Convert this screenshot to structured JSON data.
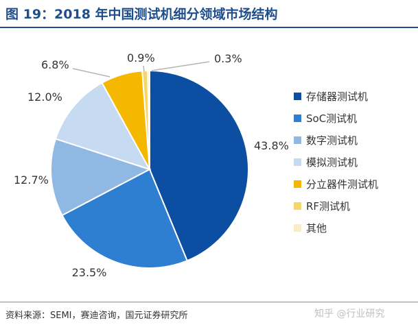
{
  "title": "图 19：2018 年中国测试机细分领域市场结构",
  "source": "资料来源：SEMI，赛迪咨询，国元证券研究所",
  "watermark": "知乎 @行业研究",
  "chart_data": {
    "type": "pie",
    "start_angle_deg": 0,
    "direction": "clockwise",
    "legend_position": "right",
    "slices": [
      {
        "name": "存储器测试机",
        "value": 43.8,
        "label": "43.8%",
        "color": "#0b4ea2"
      },
      {
        "name": "SoC测试机",
        "value": 23.5,
        "label": "23.5%",
        "color": "#2e7fd1"
      },
      {
        "name": "数字测试机",
        "value": 12.7,
        "label": "12.7%",
        "color": "#8fb8e3"
      },
      {
        "name": "模拟测试机",
        "value": 12.0,
        "label": "12.0%",
        "color": "#c6daf1"
      },
      {
        "name": "分立器件测试机",
        "value": 6.8,
        "label": "6.8%",
        "color": "#f5b800"
      },
      {
        "name": "RF测试机",
        "value": 0.9,
        "label": "0.9%",
        "color": "#f8d46a"
      },
      {
        "name": "其他",
        "value": 0.3,
        "label": "0.3%",
        "color": "#fbecc6"
      }
    ]
  }
}
